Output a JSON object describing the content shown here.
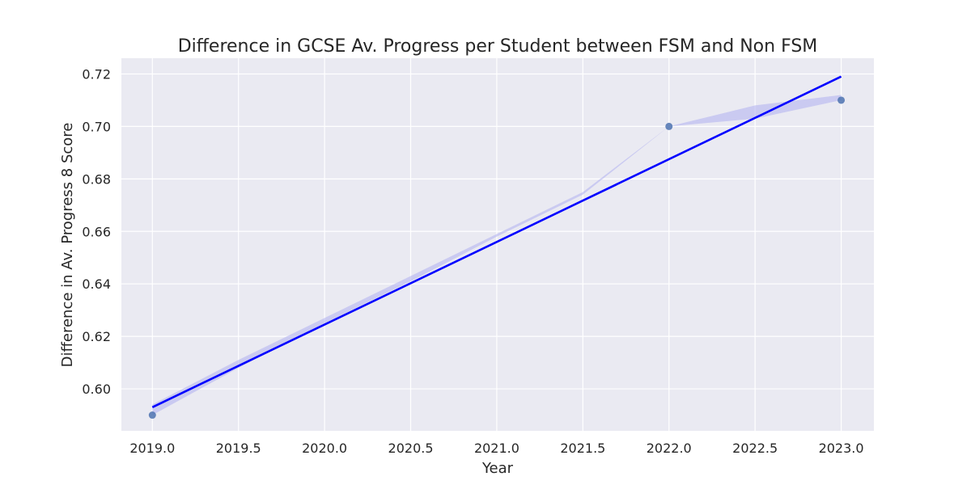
{
  "chart_data": {
    "type": "scatter",
    "title": "Difference in GCSE Av. Progress per Student between FSM and Non FSM",
    "xlabel": "Year",
    "ylabel": "Difference in Av. Progress 8 Score",
    "xlim": [
      2018.82,
      2023.19
    ],
    "ylim": [
      0.584,
      0.726
    ],
    "x_ticks": [
      2019.0,
      2019.5,
      2020.0,
      2020.5,
      2021.0,
      2021.5,
      2022.0,
      2022.5,
      2023.0
    ],
    "x_tick_labels": [
      "2019.0",
      "2019.5",
      "2020.0",
      "2020.5",
      "2021.0",
      "2021.5",
      "2022.0",
      "2022.5",
      "2023.0"
    ],
    "y_ticks": [
      0.6,
      0.62,
      0.64,
      0.66,
      0.68,
      0.7,
      0.72
    ],
    "y_tick_labels": [
      "0.60",
      "0.62",
      "0.64",
      "0.66",
      "0.68",
      "0.70",
      "0.72"
    ],
    "grid": true,
    "points": {
      "x": [
        2019,
        2022,
        2023
      ],
      "y": [
        0.59,
        0.7,
        0.71
      ]
    },
    "regression_line": {
      "x": [
        2019,
        2023
      ],
      "y": [
        0.593,
        0.719
      ]
    },
    "confidence_band": {
      "x": [
        2019,
        2019.5,
        2020,
        2020.5,
        2021,
        2021.5,
        2022,
        2022.5,
        2023
      ],
      "upper": [
        0.594,
        0.611,
        0.627,
        0.643,
        0.659,
        0.675,
        0.7,
        0.708,
        0.712
      ],
      "lower": [
        0.59,
        0.608,
        0.625,
        0.641,
        0.658,
        0.674,
        0.7,
        0.703,
        0.71
      ]
    },
    "colors": {
      "background": "#eaeaf2",
      "grid": "#ffffff",
      "points": "#4c72b0",
      "line": "#0000ff",
      "band": "#b4b4f0"
    }
  }
}
